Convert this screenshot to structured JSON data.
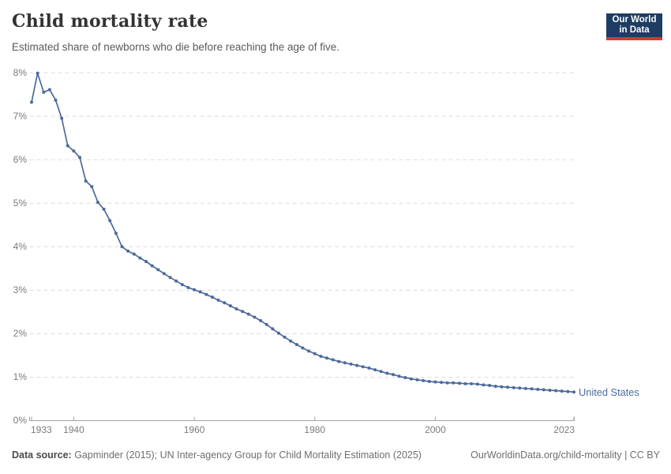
{
  "header": {
    "title": "Child mortality rate",
    "subtitle": "Estimated share of newborns who die before reaching the age of five."
  },
  "logo": {
    "line1": "Our World",
    "line2": "in Data",
    "bg_color": "#1d3d63",
    "bar_color": "#d13b33"
  },
  "footer": {
    "source_label": "Data source:",
    "source_text": " Gapminder (2015); UN Inter-agency Group for Child Mortality Estimation (2025)",
    "right_text": "OurWorldinData.org/child-mortality | CC BY"
  },
  "colors": {
    "series_blue": "#4c6a9c",
    "grid": "#dcdcdc",
    "axis": "#a3a3a3",
    "tick_text": "#7b7b7b"
  },
  "chart_data": {
    "type": "line",
    "title": "Child mortality rate",
    "xlabel": "",
    "ylabel": "",
    "grid": "horizontal-dashed",
    "marker": "dot",
    "legend_position": "end-of-line",
    "xlim": [
      1933,
      2023
    ],
    "ylim": [
      0,
      8
    ],
    "yticks": [
      {
        "value": 0,
        "label": "0%"
      },
      {
        "value": 1,
        "label": "1%"
      },
      {
        "value": 2,
        "label": "2%"
      },
      {
        "value": 3,
        "label": "3%"
      },
      {
        "value": 4,
        "label": "4%"
      },
      {
        "value": 5,
        "label": "5%"
      },
      {
        "value": 6,
        "label": "6%"
      },
      {
        "value": 7,
        "label": "7%"
      },
      {
        "value": 8,
        "label": "8%"
      }
    ],
    "xticks": [
      {
        "value": 1933,
        "label": "1933"
      },
      {
        "value": 1940,
        "label": "1940"
      },
      {
        "value": 1960,
        "label": "1960"
      },
      {
        "value": 1980,
        "label": "1980"
      },
      {
        "value": 2000,
        "label": "2000"
      },
      {
        "value": 2023,
        "label": "2023"
      }
    ],
    "x": [
      1933,
      1934,
      1935,
      1936,
      1937,
      1938,
      1939,
      1940,
      1941,
      1942,
      1943,
      1944,
      1945,
      1946,
      1947,
      1948,
      1949,
      1950,
      1951,
      1952,
      1953,
      1954,
      1955,
      1956,
      1957,
      1958,
      1959,
      1960,
      1961,
      1962,
      1963,
      1964,
      1965,
      1966,
      1967,
      1968,
      1969,
      1970,
      1971,
      1972,
      1973,
      1974,
      1975,
      1976,
      1977,
      1978,
      1979,
      1980,
      1981,
      1982,
      1983,
      1984,
      1985,
      1986,
      1987,
      1988,
      1989,
      1990,
      1991,
      1992,
      1993,
      1994,
      1995,
      1996,
      1997,
      1998,
      1999,
      2000,
      2001,
      2002,
      2003,
      2004,
      2005,
      2006,
      2007,
      2008,
      2009,
      2010,
      2011,
      2012,
      2013,
      2014,
      2015,
      2016,
      2017,
      2018,
      2019,
      2020,
      2021,
      2022,
      2023
    ],
    "series": [
      {
        "name": "United States",
        "color": "#4c6a9c",
        "unit": "%",
        "values": [
          7.32,
          7.99,
          7.55,
          7.61,
          7.37,
          6.95,
          6.32,
          6.2,
          6.05,
          5.51,
          5.38,
          5.02,
          4.86,
          4.6,
          4.31,
          4.0,
          3.9,
          3.83,
          3.74,
          3.66,
          3.56,
          3.47,
          3.38,
          3.29,
          3.21,
          3.13,
          3.06,
          3.01,
          2.96,
          2.9,
          2.84,
          2.77,
          2.71,
          2.64,
          2.57,
          2.51,
          2.45,
          2.38,
          2.3,
          2.21,
          2.11,
          2.01,
          1.92,
          1.83,
          1.75,
          1.67,
          1.6,
          1.54,
          1.48,
          1.44,
          1.4,
          1.36,
          1.33,
          1.3,
          1.27,
          1.24,
          1.21,
          1.17,
          1.13,
          1.09,
          1.06,
          1.02,
          0.99,
          0.96,
          0.94,
          0.92,
          0.9,
          0.89,
          0.88,
          0.87,
          0.87,
          0.86,
          0.85,
          0.85,
          0.84,
          0.82,
          0.81,
          0.79,
          0.78,
          0.77,
          0.76,
          0.75,
          0.74,
          0.73,
          0.72,
          0.71,
          0.7,
          0.69,
          0.68,
          0.67,
          0.66
        ]
      }
    ]
  }
}
